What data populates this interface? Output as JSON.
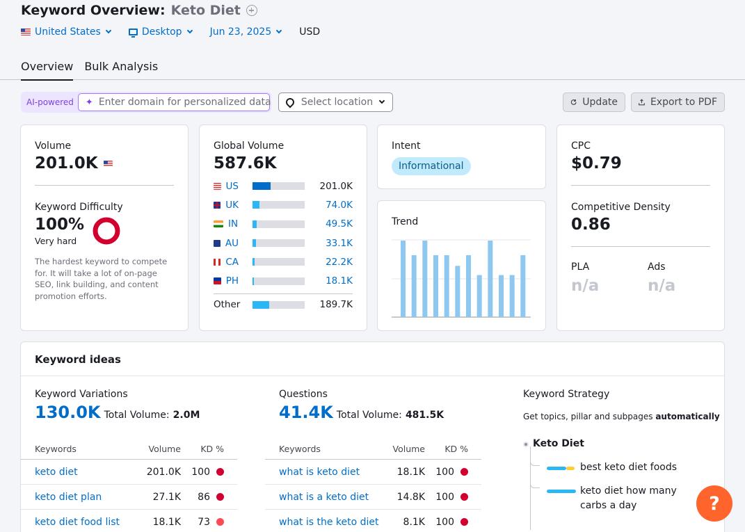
{
  "header": {
    "title_prefix": "Keyword Overview:",
    "keyword": "Keto Diet"
  },
  "filters": {
    "country": "United States",
    "device": "Desktop",
    "date": "Jun 23, 2025",
    "currency": "USD"
  },
  "tabs": [
    {
      "label": "Overview",
      "active": true
    },
    {
      "label": "Bulk Analysis",
      "active": false
    }
  ],
  "ai": {
    "label": "AI-powered",
    "placeholder": "Enter domain for personalized data"
  },
  "location": {
    "placeholder": "Select location"
  },
  "buttons": {
    "update": "Update",
    "export": "Export to PDF"
  },
  "volume": {
    "label": "Volume",
    "value": "201.0K"
  },
  "difficulty": {
    "label": "Keyword Difficulty",
    "value": "100%",
    "level": "Very hard",
    "description": "The hardest keyword to compete for. It will take a lot of on-page SEO, link building, and content promotion efforts.",
    "color": "#d1002f"
  },
  "global_volume": {
    "label": "Global Volume",
    "value": "587.6K",
    "countries": [
      {
        "code": "US",
        "value": "201.0K",
        "share": 0.34,
        "highlight": true
      },
      {
        "code": "UK",
        "value": "74.0K",
        "share": 0.13,
        "highlight": false
      },
      {
        "code": "IN",
        "value": "49.5K",
        "share": 0.08,
        "highlight": false
      },
      {
        "code": "AU",
        "value": "33.1K",
        "share": 0.06,
        "highlight": false
      },
      {
        "code": "CA",
        "value": "22.2K",
        "share": 0.04,
        "highlight": false
      },
      {
        "code": "PH",
        "value": "18.1K",
        "share": 0.03,
        "highlight": false
      }
    ],
    "other": {
      "label": "Other",
      "value": "189.7K",
      "share": 0.32
    }
  },
  "intent": {
    "label": "Intent",
    "value": "Informational"
  },
  "trend": {
    "label": "Trend",
    "values": [
      1.0,
      0.81,
      1.0,
      0.81,
      0.81,
      0.67,
      0.81,
      0.55,
      1.0,
      0.55,
      0.55,
      0.81
    ]
  },
  "cpc": {
    "label": "CPC",
    "value": "$0.79"
  },
  "density": {
    "label": "Competitive Density",
    "value": "0.86"
  },
  "pla": {
    "label": "PLA",
    "value": "n/a"
  },
  "ads": {
    "label": "Ads",
    "value": "n/a"
  },
  "ideas": {
    "title": "Keyword ideas",
    "variations": {
      "label": "Keyword Variations",
      "count": "130.0K",
      "total_label": "Total Volume:",
      "total": "2.0M",
      "headers": {
        "kw": "Keywords",
        "vol": "Volume",
        "kd": "KD %"
      },
      "rows": [
        {
          "kw": "keto diet",
          "vol": "201.0K",
          "kd": "100",
          "color": "#d1002f"
        },
        {
          "kw": "keto diet plan",
          "vol": "27.1K",
          "kd": "86",
          "color": "#d1002f"
        },
        {
          "kw": "keto diet food list",
          "vol": "18.1K",
          "kd": "73",
          "color": "#ff4953"
        }
      ]
    },
    "questions": {
      "label": "Questions",
      "count": "41.4K",
      "total_label": "Total Volume:",
      "total": "481.5K",
      "headers": {
        "kw": "Keywords",
        "vol": "Volume",
        "kd": "KD %"
      },
      "rows": [
        {
          "kw": "what is keto diet",
          "vol": "18.1K",
          "kd": "100",
          "color": "#d1002f"
        },
        {
          "kw": "what is a keto diet",
          "vol": "14.8K",
          "kd": "100",
          "color": "#d1002f"
        },
        {
          "kw": "what is the keto diet",
          "vol": "8.1K",
          "kd": "100",
          "color": "#d1002f"
        }
      ]
    },
    "strategy": {
      "label": "Keyword Strategy",
      "desc": "Get topics, pillar and subpages",
      "desc_bold": "automatically",
      "root": "Keto Diet",
      "items": [
        "best keto diet foods",
        "keto diet how many carbs a day"
      ]
    }
  },
  "help": "?"
}
